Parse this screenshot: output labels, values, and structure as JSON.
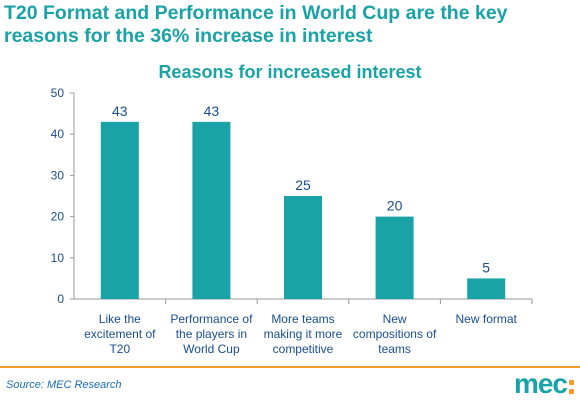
{
  "headline": "T20 Format and Performance in World Cup are the key reasons for the 36% increase in interest",
  "source": "Source: MEC Research",
  "logo": "mec",
  "colors": {
    "bar": "#1aa3a6",
    "title": "#1aa3a6",
    "accent": "#f39c2a",
    "source": "#1a6db3"
  },
  "chart_data": {
    "type": "bar",
    "title": "Reasons for increased interest",
    "categories": [
      [
        "Like the",
        "excitement of",
        "T20"
      ],
      [
        "Performance of",
        "the players in",
        "World Cup"
      ],
      [
        "More teams",
        "making it more",
        "competitive"
      ],
      [
        "New",
        "compositions of",
        "teams"
      ],
      [
        "New format"
      ]
    ],
    "values": [
      43,
      43,
      25,
      20,
      5
    ],
    "data_labels": [
      "43",
      "43",
      "25",
      "20",
      "5"
    ],
    "yticks": [
      "0",
      "10",
      "20",
      "30",
      "40",
      "50"
    ],
    "ylim": [
      0,
      50
    ],
    "grid": false,
    "legend": false
  }
}
